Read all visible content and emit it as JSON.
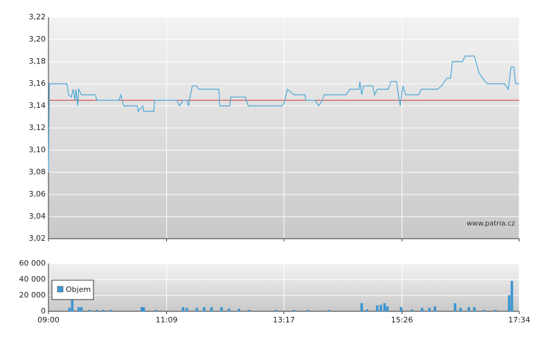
{
  "chart_data": [
    {
      "type": "line",
      "annotation": "www.patria.cz",
      "reference_line": 3.145,
      "reference_color": "#d03030",
      "grid": true,
      "xlim": [
        "09:00",
        "17:34"
      ],
      "xticks": [
        "09:00",
        "11:09",
        "13:17",
        "15:26",
        "17:34"
      ],
      "ylim": [
        3.02,
        3.22
      ],
      "yticks": [
        {
          "value": 3.02,
          "label": "3,02"
        },
        {
          "value": 3.04,
          "label": "3,04"
        },
        {
          "value": 3.06,
          "label": "3,06"
        },
        {
          "value": 3.08,
          "label": "3,08"
        },
        {
          "value": 3.1,
          "label": "3,10"
        },
        {
          "value": 3.12,
          "label": "3,12"
        },
        {
          "value": 3.14,
          "label": "3,14"
        },
        {
          "value": 3.16,
          "label": "3,16"
        },
        {
          "value": 3.18,
          "label": "3,18"
        },
        {
          "value": 3.2,
          "label": "3,20"
        },
        {
          "value": 3.22,
          "label": "3,22"
        }
      ],
      "x": [
        "09:00",
        "09:01",
        "09:20",
        "09:22",
        "09:25",
        "09:27",
        "09:29",
        "09:30",
        "09:32",
        "09:33",
        "09:36",
        "09:51",
        "09:53",
        "10:17",
        "10:19",
        "10:22",
        "10:37",
        "10:38",
        "10:43",
        "10:44",
        "10:47",
        "10:55",
        "10:56",
        "10:59",
        "11:20",
        "11:23",
        "11:27",
        "11:31",
        "11:33",
        "11:35",
        "11:37",
        "11:42",
        "11:44",
        "12:06",
        "12:07",
        "12:18",
        "12:19",
        "12:35",
        "12:38",
        "13:15",
        "13:17",
        "13:21",
        "13:28",
        "13:40",
        "13:41",
        "13:51",
        "13:55",
        "13:59",
        "14:01",
        "14:25",
        "14:29",
        "14:39",
        "14:40",
        "14:42",
        "14:44",
        "14:54",
        "14:56",
        "14:59",
        "15:11",
        "15:14",
        "15:20",
        "15:22",
        "15:24",
        "15:27",
        "15:30",
        "15:44",
        "15:47",
        "16:05",
        "16:09",
        "16:15",
        "16:19",
        "16:21",
        "16:32",
        "16:35",
        "16:45",
        "16:50",
        "16:54",
        "16:59",
        "17:18",
        "17:22",
        "17:25",
        "17:28",
        "17:30",
        "17:34"
      ],
      "series": [
        {
          "color": "#4aa8d8",
          "values": [
            3.08,
            3.16,
            3.16,
            3.15,
            3.148,
            3.155,
            3.145,
            3.155,
            3.14,
            3.155,
            3.15,
            3.15,
            3.145,
            3.145,
            3.15,
            3.14,
            3.14,
            3.135,
            3.14,
            3.135,
            3.135,
            3.135,
            3.145,
            3.145,
            3.145,
            3.14,
            3.145,
            3.145,
            3.14,
            3.15,
            3.158,
            3.158,
            3.155,
            3.155,
            3.14,
            3.14,
            3.148,
            3.148,
            3.14,
            3.14,
            3.142,
            3.155,
            3.15,
            3.15,
            3.145,
            3.145,
            3.14,
            3.145,
            3.15,
            3.15,
            3.155,
            3.155,
            3.162,
            3.15,
            3.158,
            3.158,
            3.15,
            3.155,
            3.155,
            3.162,
            3.162,
            3.15,
            3.14,
            3.158,
            3.15,
            3.15,
            3.155,
            3.155,
            3.158,
            3.165,
            3.165,
            3.18,
            3.18,
            3.185,
            3.185,
            3.17,
            3.165,
            3.16,
            3.16,
            3.155,
            3.175,
            3.175,
            3.16,
            3.16
          ]
        }
      ]
    },
    {
      "type": "bar",
      "legend": "upper left",
      "grid": true,
      "xlim": [
        "09:00",
        "17:34"
      ],
      "xticks": [
        "09:00",
        "11:09",
        "13:17",
        "15:26",
        "17:34"
      ],
      "ylim": [
        0,
        60000
      ],
      "yticks": [
        0,
        {
          "value": 20000,
          "label": "20 000"
        },
        {
          "value": 40000,
          "label": "40 000"
        },
        {
          "value": 60000,
          "label": "60 000"
        }
      ],
      "x": [
        "09:23",
        "09:26",
        "09:33",
        "09:36",
        "09:45",
        "09:53",
        "10:00",
        "10:08",
        "10:42",
        "10:44",
        "10:57",
        "11:27",
        "11:31",
        "11:42",
        "11:50",
        "11:58",
        "12:09",
        "12:17",
        "12:28",
        "12:39",
        "13:09",
        "13:28",
        "13:43",
        "14:06",
        "14:42",
        "14:48",
        "14:59",
        "15:03",
        "15:07",
        "15:10",
        "15:25",
        "15:37",
        "15:48",
        "15:56",
        "16:02",
        "16:24",
        "16:30",
        "16:39",
        "16:45",
        "16:56",
        "17:08",
        "17:23",
        "17:26"
      ],
      "series": [
        {
          "name": "Objem",
          "color": "#3a9ad9",
          "values": [
            4000,
            17000,
            5000,
            5000,
            1500,
            1500,
            1500,
            1500,
            5000,
            5000,
            1500,
            5000,
            4000,
            4000,
            5000,
            5000,
            5000,
            3000,
            3000,
            1500,
            1500,
            1500,
            1500,
            1500,
            10000,
            2000,
            7000,
            8000,
            10000,
            6000,
            5000,
            2000,
            4000,
            4000,
            6000,
            10000,
            4000,
            5000,
            5000,
            1500,
            1500,
            20000,
            38000
          ]
        }
      ]
    }
  ]
}
